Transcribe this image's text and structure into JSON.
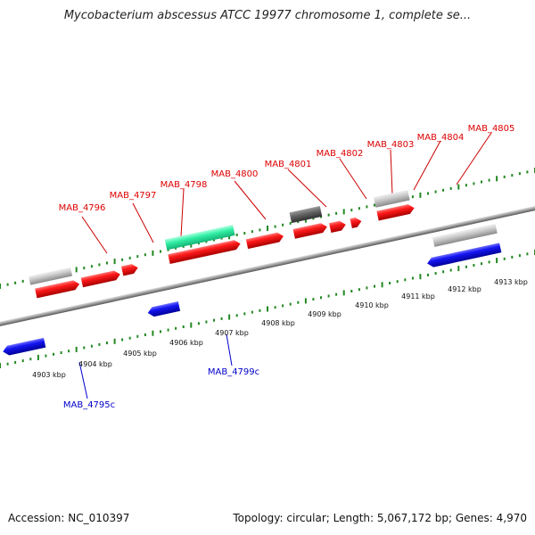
{
  "title": "Mycobacterium abscessus ATCC 19977 chromosome 1, complete se...",
  "footer": {
    "accession": "Accession: NC_010397",
    "info": "Topology: circular; Length: 5,067,172 bp; Genes: 4,970"
  },
  "colors": {
    "forward_gene": "#ff0000",
    "reverse_gene": "#0000ee",
    "highlight_gene": "#33ffaa",
    "grey_gene": "#c8c8c8",
    "dark_gene": "#6a6a6a",
    "backbone": "#999999",
    "ruler": "#228822",
    "forward_label": "#dd0000",
    "reverse_label": "#0000cc"
  },
  "forward_labels": [
    "MAB_4796",
    "MAB_4797",
    "MAB_4798",
    "MAB_4800",
    "MAB_4801",
    "MAB_4802",
    "MAB_4803",
    "MAB_4804",
    "MAB_4805"
  ],
  "reverse_labels": [
    "MAB_4795c",
    "MAB_4799c"
  ],
  "kbp_labels": [
    "4903 kbp",
    "4904 kbp",
    "4905 kbp",
    "4906 kbp",
    "4907 kbp",
    "4908 kbp",
    "4909 kbp",
    "4910 kbp",
    "4911 kbp",
    "4912 kbp",
    "4913 kbp"
  ]
}
